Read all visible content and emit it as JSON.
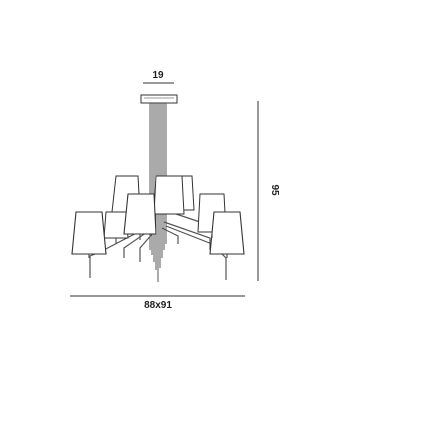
{
  "dimensions": {
    "canopy_width": "19",
    "height": "95",
    "footprint": "88x91"
  },
  "colors": {
    "line": "#333333",
    "rod": "#555555",
    "shade_fill": "#ffffff",
    "background": "#ffffff"
  }
}
